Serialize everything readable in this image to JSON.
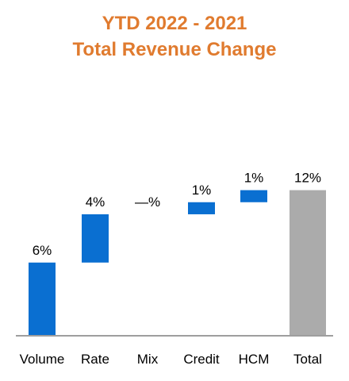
{
  "chart_data": {
    "type": "bar",
    "subtype": "waterfall",
    "title_lines": [
      "YTD 2022 - 2021",
      "Total Revenue Change"
    ],
    "categories": [
      "Volume",
      "Rate",
      "Mix",
      "Credit",
      "HCM",
      "Total"
    ],
    "values": [
      6.0,
      4.0,
      0.0,
      1.0,
      1.0,
      12.0
    ],
    "data_labels": [
      "6%",
      "4%",
      "—%",
      "1%",
      "1%",
      "12%"
    ],
    "bar_kinds": [
      "delta",
      "delta",
      "delta",
      "delta",
      "delta",
      "total"
    ],
    "ylim": [
      0,
      12.3
    ],
    "grid": false,
    "legend": "none",
    "colors": {
      "title": "#E07B2F",
      "increase": "#0A6FD1",
      "total": "#ABABAB",
      "axis": "#7F7F7F"
    }
  }
}
